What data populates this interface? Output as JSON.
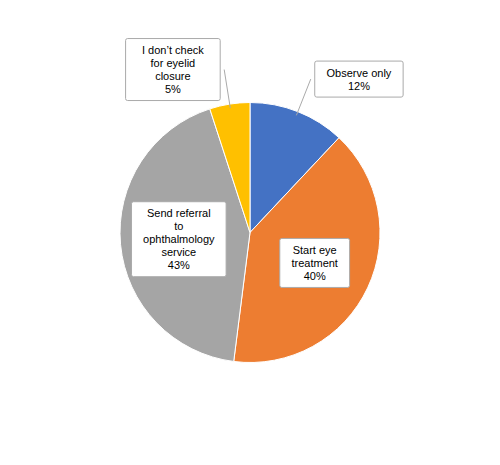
{
  "chart_data": {
    "type": "pie",
    "categories": [
      "Observe only",
      "Start eye\ntreatment",
      "Send referral\nto\nophthalmology\nservice",
      "I don’t check\nfor eyelid\nclosure"
    ],
    "values": [
      12,
      40,
      43,
      5
    ],
    "value_labels": [
      "12%",
      "40%",
      "43%",
      "5%"
    ],
    "colors": [
      "#4472C4",
      "#ED7D31",
      "#A5A5A5",
      "#FFC000"
    ],
    "data_labels": true
  }
}
